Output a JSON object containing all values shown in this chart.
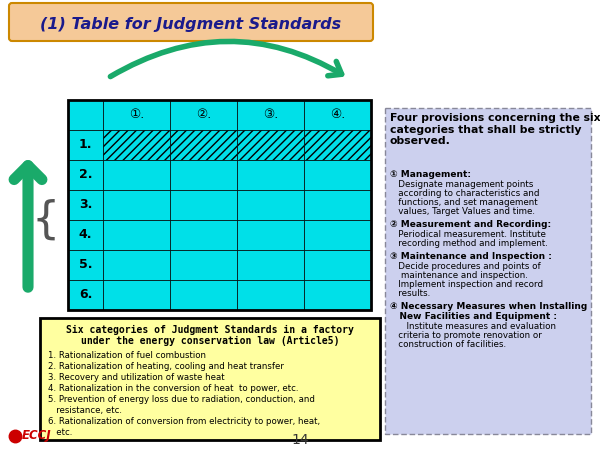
{
  "title": "(1) Table for Judgment Standards",
  "title_bg": "#F5C998",
  "title_color": "#1a1a8c",
  "bg_color": "#ffffff",
  "table_header_cols": [
    "①.",
    "②.",
    "③.",
    "④."
  ],
  "table_row_labels": [
    "1.",
    "2.",
    "3.",
    "4.",
    "5.",
    "6."
  ],
  "cell_color": "#00E0E8",
  "row1_hatch": true,
  "left_box_bg": "#FFFFA0",
  "left_box_title_line1": "Six categories of Judgment Standards in a factory",
  "left_box_title_line2": "under the energy conservation law (Article5)",
  "left_box_items": [
    "1. Rationalization of fuel combustion",
    "2. Rationalization of heating, cooling and heat transfer",
    "3. Recovery and utilization of waste heat",
    "4. Rationalization in the conversion of heat  to power, etc.",
    "5. Prevention of energy loss due to radiation, conduction, and\n   resistance, etc.",
    "6. Rationalization of conversion from electricity to power, heat,\n   etc."
  ],
  "right_box_bg": "#ccd0ee",
  "right_box_title": "Four provisions concerning the six\ncategories that shall be strictly\nobserved.",
  "right_box_items": [
    {
      "header": "① Management:",
      "body": "   Designate management points\n   according to characteristics and\n   functions, and set management\n   values, Target Values and time."
    },
    {
      "header": "② Measurement and Recording:",
      "body": "   Periodical measurement. Institute\n   recording method and implement."
    },
    {
      "header": "③ Maintenance and Inspection :",
      "body": "   Decide procedures and points of\n    maintenance and inspection.\n   Implement inspection and record\n   results."
    },
    {
      "header": "④ Necessary Measures when Installing\n   New Facilities and Equipment :",
      "body": "      Institute measures and evaluation\n   criteria to promote renovation or\n   construction of facilities."
    }
  ],
  "arrow_color": "#1AAA6A",
  "eccj_color": "#cc0000",
  "page_number": "14"
}
